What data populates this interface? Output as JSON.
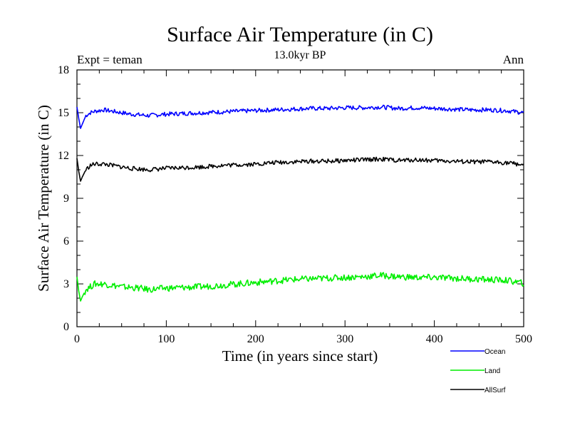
{
  "chart_data": {
    "type": "line",
    "title": "Surface Air Temperature (in C)",
    "subtitle": "13.0kyr BP",
    "left_label": "Expt = teman",
    "right_label": "Ann",
    "xlabel": "Time (in years since start)",
    "ylabel": "Surface Air Temperature (in C)",
    "xlim": [
      0,
      500
    ],
    "ylim": [
      0,
      18
    ],
    "x_ticks": [
      0,
      100,
      200,
      300,
      400,
      500
    ],
    "y_ticks": [
      0,
      3,
      6,
      9,
      12,
      15,
      18
    ],
    "x": [
      0,
      2,
      4,
      6,
      10,
      15,
      20,
      30,
      40,
      50,
      60,
      70,
      80,
      90,
      100,
      120,
      140,
      160,
      180,
      200,
      220,
      240,
      260,
      280,
      300,
      320,
      340,
      360,
      380,
      400,
      420,
      440,
      460,
      480,
      500
    ],
    "series": [
      {
        "name": "Ocean",
        "color": "#0000ff",
        "values": [
          15.4,
          14.6,
          13.9,
          14.2,
          14.8,
          15.0,
          15.1,
          15.2,
          15.1,
          15.0,
          14.9,
          14.85,
          14.8,
          14.85,
          14.9,
          14.95,
          15.0,
          15.05,
          15.1,
          15.15,
          15.2,
          15.25,
          15.3,
          15.3,
          15.35,
          15.35,
          15.4,
          15.3,
          15.35,
          15.3,
          15.25,
          15.2,
          15.2,
          15.15,
          15.0
        ]
      },
      {
        "name": "Land",
        "color": "#00ee00",
        "values": [
          3.5,
          2.5,
          1.8,
          2.1,
          2.6,
          2.8,
          3.0,
          3.0,
          2.9,
          2.8,
          2.75,
          2.7,
          2.6,
          2.65,
          2.7,
          2.75,
          2.8,
          2.9,
          3.0,
          3.1,
          3.2,
          3.3,
          3.35,
          3.4,
          3.45,
          3.5,
          3.6,
          3.5,
          3.45,
          3.45,
          3.4,
          3.35,
          3.3,
          3.25,
          3.05
        ]
      },
      {
        "name": "AllSurf",
        "color": "#000000",
        "values": [
          11.8,
          10.9,
          10.2,
          10.5,
          11.0,
          11.3,
          11.4,
          11.4,
          11.3,
          11.2,
          11.1,
          11.05,
          11.0,
          11.05,
          11.1,
          11.15,
          11.2,
          11.3,
          11.35,
          11.4,
          11.5,
          11.55,
          11.6,
          11.6,
          11.65,
          11.7,
          11.75,
          11.65,
          11.7,
          11.65,
          11.6,
          11.55,
          11.55,
          11.5,
          11.35
        ]
      }
    ]
  }
}
